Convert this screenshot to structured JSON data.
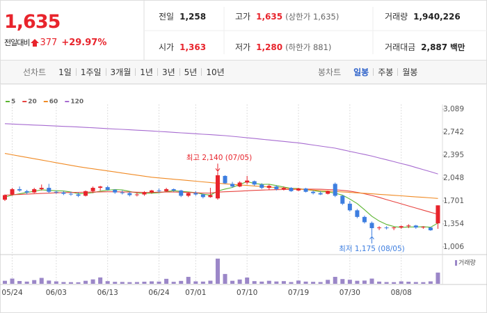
{
  "header": {
    "price": "1,635",
    "change_label": "전일대비",
    "change": "377",
    "change_rate": "+29.97%",
    "stats": [
      {
        "label": "전일",
        "value": "1,258"
      },
      {
        "label": "고가",
        "value": "1,635",
        "note": "(상한가 1,635)"
      },
      {
        "label": "거래량",
        "value": "1,940,226"
      },
      {
        "label": "시가",
        "value": "1,363"
      },
      {
        "label": "저가",
        "value": "1,280",
        "note": "(하한가 881)"
      },
      {
        "label": "거래대금",
        "value": "2,887",
        "unit": "백만"
      }
    ]
  },
  "tabs": {
    "line_label": "선차트",
    "periods": [
      "1일",
      "1주일",
      "3개월",
      "1년",
      "3년",
      "5년",
      "10년"
    ],
    "candle_label": "봉차트",
    "candles": [
      "일봉",
      "주봉",
      "월봉"
    ],
    "active_candle": 0
  },
  "chart_data": {
    "type": "candlestick",
    "categories": [
      null,
      "05/24",
      null,
      null,
      null,
      null,
      null,
      "06/03",
      null,
      null,
      null,
      null,
      null,
      null,
      "06/13",
      null,
      null,
      null,
      null,
      null,
      null,
      "06/24",
      null,
      null,
      null,
      null,
      "07/01",
      null,
      null,
      null,
      null,
      null,
      null,
      "07/10",
      null,
      null,
      null,
      null,
      null,
      null,
      "07/19",
      null,
      null,
      null,
      null,
      null,
      null,
      "07/30",
      null,
      null,
      null,
      null,
      null,
      null,
      "08/08",
      null,
      null,
      null,
      null,
      null
    ],
    "open": [
      1720,
      1800,
      1880,
      1850,
      1830,
      1880,
      1900,
      1840,
      1830,
      1810,
      1800,
      1780,
      1850,
      1900,
      1910,
      1870,
      1830,
      1820,
      1790,
      1800,
      1830,
      1860,
      1850,
      1880,
      1860,
      1780,
      1820,
      1800,
      1760,
      1740,
      2080,
      1960,
      1920,
      1980,
      2000,
      1950,
      1900,
      1920,
      1880,
      1900,
      1860,
      1890,
      1840,
      1820,
      1810,
      1960,
      1780,
      1660,
      1560,
      1460,
      1370,
      1290,
      1300,
      1290,
      1300,
      1320,
      1330,
      1300,
      1300,
      1363
    ],
    "high": [
      1800,
      1900,
      1920,
      1870,
      1900,
      1950,
      1960,
      1860,
      1850,
      1840,
      1830,
      1860,
      1920,
      1930,
      1930,
      1880,
      1860,
      1840,
      1830,
      1850,
      1870,
      1890,
      1900,
      1890,
      1870,
      1830,
      1850,
      1810,
      1900,
      2140,
      2090,
      1990,
      2000,
      2080,
      2010,
      1970,
      1950,
      1940,
      1920,
      1910,
      1900,
      1900,
      1860,
      1850,
      1860,
      1980,
      1790,
      1700,
      1580,
      1480,
      1390,
      1320,
      1320,
      1310,
      1330,
      1350,
      1340,
      1320,
      1310,
      1635
    ],
    "low": [
      1700,
      1780,
      1840,
      1800,
      1820,
      1860,
      1820,
      1810,
      1790,
      1780,
      1760,
      1770,
      1820,
      1860,
      1860,
      1810,
      1800,
      1770,
      1770,
      1780,
      1810,
      1830,
      1840,
      1840,
      1760,
      1760,
      1780,
      1740,
      1750,
      1720,
      1960,
      1900,
      1910,
      1950,
      1930,
      1880,
      1870,
      1860,
      1860,
      1840,
      1850,
      1830,
      1800,
      1790,
      1800,
      1760,
      1640,
      1540,
      1440,
      1360,
      1175,
      1260,
      1270,
      1260,
      1280,
      1290,
      1280,
      1280,
      1250,
      1280
    ],
    "close": [
      1790,
      1880,
      1860,
      1830,
      1880,
      1900,
      1840,
      1830,
      1810,
      1800,
      1780,
      1850,
      1900,
      1920,
      1870,
      1830,
      1820,
      1790,
      1800,
      1830,
      1860,
      1850,
      1880,
      1860,
      1780,
      1820,
      1800,
      1760,
      1790,
      2090,
      1970,
      1920,
      1980,
      2010,
      1950,
      1900,
      1930,
      1880,
      1900,
      1850,
      1890,
      1840,
      1820,
      1800,
      1850,
      1780,
      1660,
      1560,
      1460,
      1380,
      1290,
      1300,
      1290,
      1300,
      1320,
      1330,
      1300,
      1310,
      1258,
      1635
    ],
    "volume": [
      520000,
      900000,
      480000,
      380000,
      640000,
      1020000,
      560000,
      420000,
      300000,
      280000,
      260000,
      520000,
      760000,
      1100000,
      460000,
      340000,
      320000,
      280000,
      300000,
      360000,
      420000,
      380000,
      860000,
      340000,
      500000,
      1200000,
      420000,
      380000,
      540000,
      4360000,
      1700000,
      520000,
      740000,
      1080000,
      460000,
      380000,
      520000,
      400000,
      460000,
      300000,
      560000,
      380000,
      340000,
      300000,
      680000,
      1200000,
      820000,
      700000,
      520000,
      560000,
      900000,
      380000,
      300000,
      280000,
      420000,
      360000,
      300000,
      280000,
      420000,
      1940226
    ],
    "up_color": "#e8242c",
    "down_color": "#3d7ee0",
    "volume_color": "#9b87c8",
    "volume_label": "거래량",
    "series": [
      {
        "name": "5",
        "color": "#5cb531",
        "values": [
          1760,
          1790,
          1810,
          1830,
          1848,
          1870,
          1862,
          1856,
          1852,
          1836,
          1812,
          1814,
          1828,
          1850,
          1864,
          1874,
          1868,
          1846,
          1822,
          1814,
          1820,
          1826,
          1844,
          1856,
          1846,
          1838,
          1828,
          1804,
          1790,
          1852,
          1882,
          1906,
          1950,
          1994,
          1966,
          1952,
          1954,
          1934,
          1912,
          1892,
          1890,
          1872,
          1860,
          1840,
          1840,
          1818,
          1790,
          1730,
          1662,
          1568,
          1470,
          1398,
          1346,
          1314,
          1302,
          1308,
          1308,
          1312,
          1304,
          1367
        ]
      },
      {
        "name": "20",
        "color": "#e8433f",
        "values": [
          1790,
          1795,
          1800,
          1805,
          1810,
          1815,
          1820,
          1825,
          1828,
          1830,
          1832,
          1834,
          1836,
          1838,
          1840,
          1840,
          1838,
          1836,
          1834,
          1832,
          1832,
          1834,
          1836,
          1836,
          1834,
          1830,
          1826,
          1822,
          1820,
          1835,
          1840,
          1845,
          1850,
          1856,
          1862,
          1866,
          1870,
          1872,
          1874,
          1876,
          1878,
          1880,
          1880,
          1878,
          1874,
          1870,
          1862,
          1850,
          1832,
          1810,
          1785,
          1755,
          1722,
          1690,
          1658,
          1626,
          1594,
          1562,
          1530,
          1500
        ]
      },
      {
        "name": "60",
        "color": "#f08a24",
        "values": [
          2420,
          2400,
          2380,
          2360,
          2340,
          2320,
          2300,
          2280,
          2260,
          2240,
          2220,
          2204,
          2188,
          2172,
          2156,
          2140,
          2124,
          2108,
          2092,
          2076,
          2060,
          2050,
          2040,
          2030,
          2020,
          2010,
          2000,
          1990,
          1980,
          1970,
          1960,
          1952,
          1944,
          1936,
          1928,
          1920,
          1912,
          1904,
          1896,
          1888,
          1880,
          1873,
          1866,
          1859,
          1852,
          1845,
          1838,
          1831,
          1824,
          1817,
          1810,
          1802,
          1794,
          1787,
          1779,
          1771,
          1763,
          1756,
          1748,
          1740
        ]
      },
      {
        "name": "120",
        "color": "#a66ad0",
        "values": [
          2870,
          2865,
          2860,
          2855,
          2850,
          2845,
          2840,
          2835,
          2830,
          2825,
          2820,
          2814,
          2808,
          2802,
          2796,
          2790,
          2784,
          2778,
          2772,
          2766,
          2760,
          2753,
          2746,
          2739,
          2732,
          2725,
          2718,
          2711,
          2704,
          2697,
          2690,
          2679,
          2668,
          2657,
          2646,
          2635,
          2624,
          2613,
          2602,
          2591,
          2580,
          2564,
          2548,
          2532,
          2516,
          2500,
          2476,
          2452,
          2428,
          2404,
          2380,
          2352,
          2324,
          2296,
          2268,
          2240,
          2208,
          2175,
          2143,
          2110
        ]
      }
    ],
    "ylim": [
      901,
      3163
    ],
    "yticks": [
      {
        "value": 1006,
        "label": "1,006"
      },
      {
        "value": 1354,
        "label": "1,354"
      },
      {
        "value": 1701,
        "label": "1,701"
      },
      {
        "value": 2048,
        "label": "2,048"
      },
      {
        "value": 2395,
        "label": "2,395"
      },
      {
        "value": 2742,
        "label": "2,742"
      },
      {
        "value": 3089,
        "label": "3,089"
      }
    ],
    "x_grid": true,
    "annotations": [
      {
        "text": "최고 2,140 (07/05)",
        "color": "#e8242c"
      },
      {
        "text": "최저 1,175 (08/05)",
        "color": "#3d7ee0"
      }
    ]
  }
}
